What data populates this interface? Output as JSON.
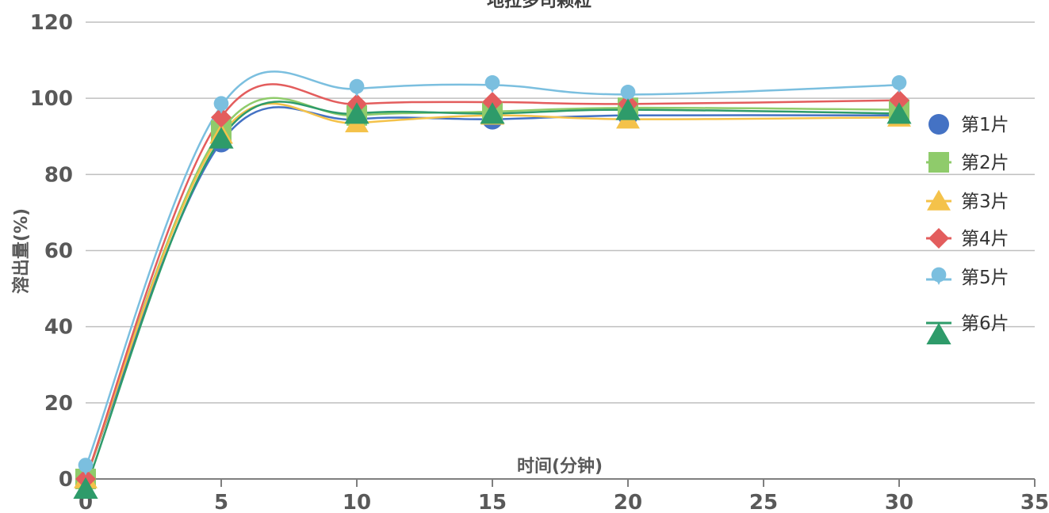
{
  "chart_data": {
    "type": "scatter",
    "title": "地拉多司颗粒",
    "xlabel": "时间(分钟)",
    "ylabel": "溶出量(%)",
    "xlim": [
      0,
      35
    ],
    "ylim": [
      0,
      120
    ],
    "xticks": [
      "0",
      "5",
      "10",
      "15",
      "20",
      "25",
      "30",
      "35"
    ],
    "yticks": [
      "0",
      "20",
      "40",
      "60",
      "80",
      "100",
      "120"
    ],
    "grid": true,
    "smooth": true,
    "legend_position": "right",
    "x": [
      0,
      5,
      10,
      15,
      20,
      30
    ],
    "series": [
      {
        "name": "第1片",
        "color": "#4472C4",
        "marker": "circle",
        "values": [
          0,
          88.5,
          94.5,
          94.5,
          95.5,
          95.5
        ]
      },
      {
        "name": "第2片",
        "color": "#8FCB6B",
        "marker": "square",
        "values": [
          0,
          91.5,
          95.5,
          96.5,
          97.5,
          97.0
        ]
      },
      {
        "name": "第3片",
        "color": "#F4C24A",
        "marker": "triangle",
        "values": [
          0,
          90.5,
          93.5,
          95.5,
          94.5,
          95.0
        ]
      },
      {
        "name": "第4片",
        "color": "#E35D5D",
        "marker": "diamond",
        "values": [
          0,
          95.0,
          98.5,
          99.0,
          98.5,
          99.5
        ]
      },
      {
        "name": "第5片",
        "color": "#7BBFDF",
        "marker": "pin",
        "values": [
          3,
          98.0,
          102.5,
          103.5,
          101.0,
          103.5
        ]
      },
      {
        "name": "第6片",
        "color": "#2E9B6A",
        "marker": "triangle-down",
        "values": [
          -2.5,
          89.5,
          96.0,
          96.0,
          97.0,
          96.0
        ]
      }
    ]
  }
}
